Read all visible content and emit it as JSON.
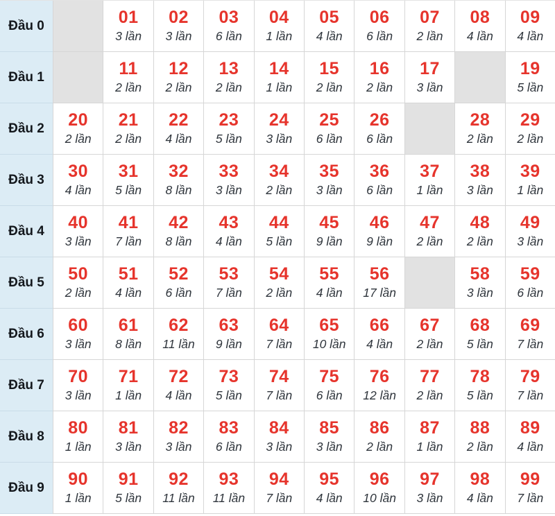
{
  "colors": {
    "number_red": "#e6342c",
    "row_label_bg": "#dcecf5",
    "empty_cell_bg": "#e2e2e2",
    "cell_border": "#d6d6d6",
    "count_text": "#2f353c"
  },
  "chart_data": {
    "type": "table",
    "description_unit": "lần",
    "rows": [
      {
        "label": "Đầu 0",
        "cells": [
          null,
          {
            "num": "01",
            "count": 3,
            "count_label": "3 lần"
          },
          {
            "num": "02",
            "count": 3,
            "count_label": "3 lần"
          },
          {
            "num": "03",
            "count": 6,
            "count_label": "6 lần"
          },
          {
            "num": "04",
            "count": 1,
            "count_label": "1 lần"
          },
          {
            "num": "05",
            "count": 4,
            "count_label": "4 lần"
          },
          {
            "num": "06",
            "count": 6,
            "count_label": "6 lần"
          },
          {
            "num": "07",
            "count": 2,
            "count_label": "2 lần"
          },
          {
            "num": "08",
            "count": 4,
            "count_label": "4 lần"
          },
          {
            "num": "09",
            "count": 4,
            "count_label": "4 lần"
          }
        ]
      },
      {
        "label": "Đầu 1",
        "cells": [
          null,
          {
            "num": "11",
            "count": 2,
            "count_label": "2 lần"
          },
          {
            "num": "12",
            "count": 2,
            "count_label": "2 lần"
          },
          {
            "num": "13",
            "count": 2,
            "count_label": "2 lần"
          },
          {
            "num": "14",
            "count": 1,
            "count_label": "1 lần"
          },
          {
            "num": "15",
            "count": 2,
            "count_label": "2 lần"
          },
          {
            "num": "16",
            "count": 2,
            "count_label": "2 lần"
          },
          {
            "num": "17",
            "count": 3,
            "count_label": "3 lần"
          },
          null,
          {
            "num": "19",
            "count": 5,
            "count_label": "5 lần"
          }
        ]
      },
      {
        "label": "Đầu 2",
        "cells": [
          {
            "num": "20",
            "count": 2,
            "count_label": "2 lần"
          },
          {
            "num": "21",
            "count": 2,
            "count_label": "2 lần"
          },
          {
            "num": "22",
            "count": 4,
            "count_label": "4 lần"
          },
          {
            "num": "23",
            "count": 5,
            "count_label": "5 lần"
          },
          {
            "num": "24",
            "count": 3,
            "count_label": "3 lần"
          },
          {
            "num": "25",
            "count": 6,
            "count_label": "6 lần"
          },
          {
            "num": "26",
            "count": 6,
            "count_label": "6 lần"
          },
          null,
          {
            "num": "28",
            "count": 2,
            "count_label": "2 lần"
          },
          {
            "num": "29",
            "count": 2,
            "count_label": "2 lần"
          }
        ]
      },
      {
        "label": "Đầu 3",
        "cells": [
          {
            "num": "30",
            "count": 4,
            "count_label": "4 lần"
          },
          {
            "num": "31",
            "count": 5,
            "count_label": "5 lần"
          },
          {
            "num": "32",
            "count": 8,
            "count_label": "8 lần"
          },
          {
            "num": "33",
            "count": 3,
            "count_label": "3 lần"
          },
          {
            "num": "34",
            "count": 2,
            "count_label": "2 lần"
          },
          {
            "num": "35",
            "count": 3,
            "count_label": "3 lần"
          },
          {
            "num": "36",
            "count": 6,
            "count_label": "6 lần"
          },
          {
            "num": "37",
            "count": 1,
            "count_label": "1 lần"
          },
          {
            "num": "38",
            "count": 3,
            "count_label": "3 lần"
          },
          {
            "num": "39",
            "count": 1,
            "count_label": "1 lần"
          }
        ]
      },
      {
        "label": "Đầu 4",
        "cells": [
          {
            "num": "40",
            "count": 3,
            "count_label": "3 lần"
          },
          {
            "num": "41",
            "count": 7,
            "count_label": "7 lần"
          },
          {
            "num": "42",
            "count": 8,
            "count_label": "8 lần"
          },
          {
            "num": "43",
            "count": 4,
            "count_label": "4 lần"
          },
          {
            "num": "44",
            "count": 5,
            "count_label": "5 lần"
          },
          {
            "num": "45",
            "count": 9,
            "count_label": "9 lần"
          },
          {
            "num": "46",
            "count": 9,
            "count_label": "9 lần"
          },
          {
            "num": "47",
            "count": 2,
            "count_label": "2 lần"
          },
          {
            "num": "48",
            "count": 2,
            "count_label": "2 lần"
          },
          {
            "num": "49",
            "count": 3,
            "count_label": "3 lần"
          }
        ]
      },
      {
        "label": "Đầu 5",
        "cells": [
          {
            "num": "50",
            "count": 2,
            "count_label": "2 lần"
          },
          {
            "num": "51",
            "count": 4,
            "count_label": "4 lần"
          },
          {
            "num": "52",
            "count": 6,
            "count_label": "6 lần"
          },
          {
            "num": "53",
            "count": 7,
            "count_label": "7 lần"
          },
          {
            "num": "54",
            "count": 2,
            "count_label": "2 lần"
          },
          {
            "num": "55",
            "count": 4,
            "count_label": "4 lần"
          },
          {
            "num": "56",
            "count": 17,
            "count_label": "17 lần"
          },
          null,
          {
            "num": "58",
            "count": 3,
            "count_label": "3 lần"
          },
          {
            "num": "59",
            "count": 6,
            "count_label": "6 lần"
          }
        ]
      },
      {
        "label": "Đầu 6",
        "cells": [
          {
            "num": "60",
            "count": 3,
            "count_label": "3 lần"
          },
          {
            "num": "61",
            "count": 8,
            "count_label": "8 lần"
          },
          {
            "num": "62",
            "count": 11,
            "count_label": "11 lần"
          },
          {
            "num": "63",
            "count": 9,
            "count_label": "9 lần"
          },
          {
            "num": "64",
            "count": 7,
            "count_label": "7 lần"
          },
          {
            "num": "65",
            "count": 10,
            "count_label": "10 lần"
          },
          {
            "num": "66",
            "count": 4,
            "count_label": "4 lần"
          },
          {
            "num": "67",
            "count": 2,
            "count_label": "2 lần"
          },
          {
            "num": "68",
            "count": 5,
            "count_label": "5 lần"
          },
          {
            "num": "69",
            "count": 7,
            "count_label": "7 lần"
          }
        ]
      },
      {
        "label": "Đầu 7",
        "cells": [
          {
            "num": "70",
            "count": 3,
            "count_label": "3 lần"
          },
          {
            "num": "71",
            "count": 1,
            "count_label": "1 lần"
          },
          {
            "num": "72",
            "count": 4,
            "count_label": "4 lần"
          },
          {
            "num": "73",
            "count": 5,
            "count_label": "5 lần"
          },
          {
            "num": "74",
            "count": 7,
            "count_label": "7 lần"
          },
          {
            "num": "75",
            "count": 6,
            "count_label": "6 lần"
          },
          {
            "num": "76",
            "count": 12,
            "count_label": "12 lần"
          },
          {
            "num": "77",
            "count": 2,
            "count_label": "2 lần"
          },
          {
            "num": "78",
            "count": 5,
            "count_label": "5 lần"
          },
          {
            "num": "79",
            "count": 7,
            "count_label": "7 lần"
          }
        ]
      },
      {
        "label": "Đầu 8",
        "cells": [
          {
            "num": "80",
            "count": 1,
            "count_label": "1 lần"
          },
          {
            "num": "81",
            "count": 3,
            "count_label": "3 lần"
          },
          {
            "num": "82",
            "count": 3,
            "count_label": "3 lần"
          },
          {
            "num": "83",
            "count": 6,
            "count_label": "6 lần"
          },
          {
            "num": "84",
            "count": 3,
            "count_label": "3 lần"
          },
          {
            "num": "85",
            "count": 3,
            "count_label": "3 lần"
          },
          {
            "num": "86",
            "count": 2,
            "count_label": "2 lần"
          },
          {
            "num": "87",
            "count": 1,
            "count_label": "1 lần"
          },
          {
            "num": "88",
            "count": 2,
            "count_label": "2 lần"
          },
          {
            "num": "89",
            "count": 4,
            "count_label": "4 lần"
          }
        ]
      },
      {
        "label": "Đầu 9",
        "cells": [
          {
            "num": "90",
            "count": 1,
            "count_label": "1 lần"
          },
          {
            "num": "91",
            "count": 5,
            "count_label": "5 lần"
          },
          {
            "num": "92",
            "count": 11,
            "count_label": "11 lần"
          },
          {
            "num": "93",
            "count": 11,
            "count_label": "11 lần"
          },
          {
            "num": "94",
            "count": 7,
            "count_label": "7 lần"
          },
          {
            "num": "95",
            "count": 4,
            "count_label": "4 lần"
          },
          {
            "num": "96",
            "count": 10,
            "count_label": "10 lần"
          },
          {
            "num": "97",
            "count": 3,
            "count_label": "3 lần"
          },
          {
            "num": "98",
            "count": 4,
            "count_label": "4 lần"
          },
          {
            "num": "99",
            "count": 7,
            "count_label": "7 lần"
          }
        ]
      }
    ]
  }
}
